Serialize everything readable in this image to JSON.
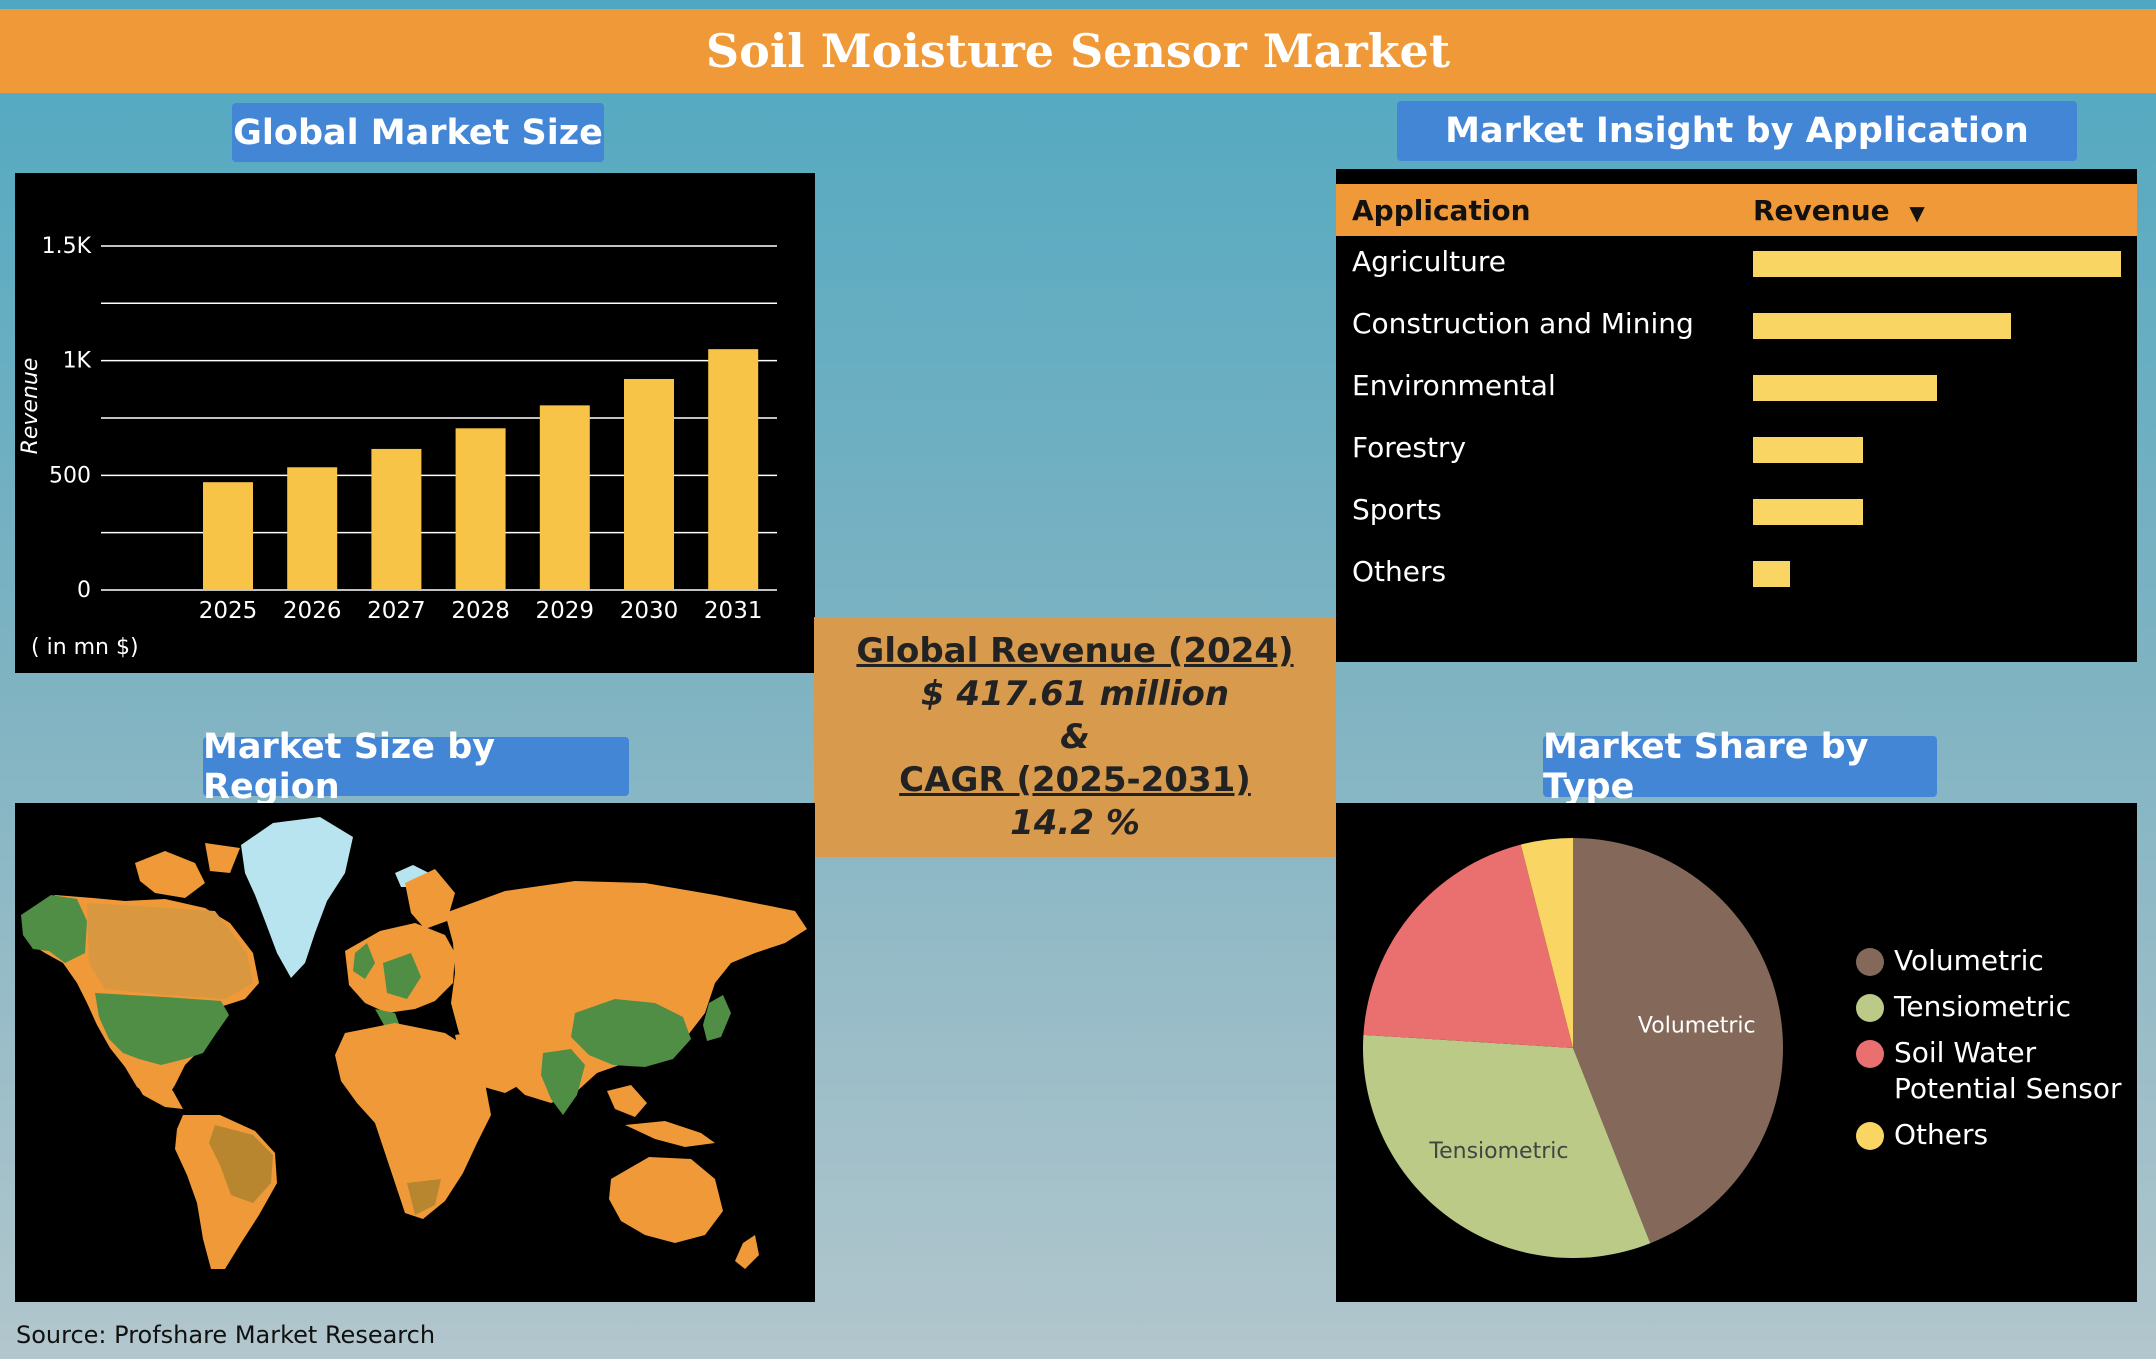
{
  "title": "Soil Moisture Sensor Market",
  "sections": {
    "market_size": "Global Market Size",
    "application": "Market Insight by Application",
    "region": "Market Size by Region",
    "type": "Market Share by Type"
  },
  "center": {
    "revenue_label": "Global Revenue (2024)",
    "revenue_value": "$ 417.61 million",
    "amp": "&",
    "cagr_label": "CAGR (2025-2031)",
    "cagr_value": "14.2 %"
  },
  "source": "Source: Profshare Market Research",
  "colors": {
    "banner": "#ef9939",
    "pill": "#4486d6",
    "bar": "#f7c447",
    "center_box": "#d89a4c",
    "map_orange": "#ef9939",
    "map_green": "#4f8e44",
    "map_ice": "#b7e4ee"
  },
  "map_icon": "world-map-icon",
  "chart_data": [
    {
      "type": "bar",
      "categories": [
        "2025",
        "2026",
        "2027",
        "2028",
        "2029",
        "2030",
        "2031"
      ],
      "values": [
        470,
        535,
        615,
        705,
        805,
        920,
        1050
      ],
      "ylabel": "Revenue",
      "unit_note": "( in mn $)",
      "ylim": [
        0,
        1600
      ],
      "yticks": [
        0,
        500,
        1000,
        1500
      ],
      "ytick_labels": [
        "0",
        "500",
        "1K",
        "1.5K"
      ],
      "grid": true
    },
    {
      "type": "bar",
      "orientation": "horizontal",
      "columns": [
        "Application",
        "Revenue"
      ],
      "categories": [
        "Agriculture",
        "Construction and Mining",
        "Environmental",
        "Forestry",
        "Sports",
        "Others"
      ],
      "values": [
        100,
        70,
        50,
        30,
        30,
        10
      ]
    },
    {
      "type": "pie",
      "labels": [
        "Volumetric",
        "Tensiometric",
        "Soil Water Potential Sensor",
        "Others"
      ],
      "values": [
        44,
        32,
        20,
        4
      ],
      "colors": [
        "#84695b",
        "#bcca88",
        "#ea7070",
        "#f9d563"
      ],
      "slice_labels": [
        "Volumetric",
        "Tensiometric",
        "",
        ""
      ],
      "legend": "right"
    }
  ]
}
